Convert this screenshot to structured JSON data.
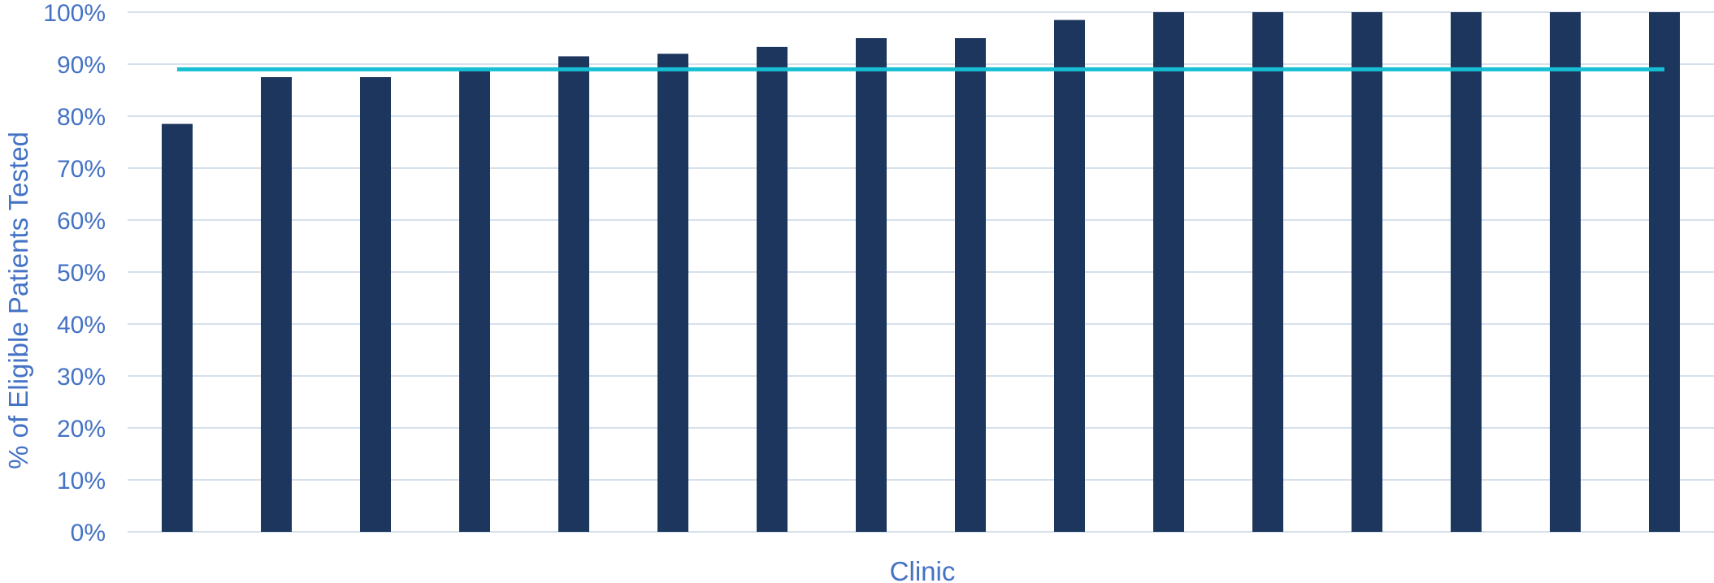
{
  "chart_data": {
    "type": "bar",
    "title": "",
    "xlabel": "Clinic",
    "ylabel": "% of Eligible Patients Tested",
    "ylim": [
      0,
      100
    ],
    "y_ticks": [
      "0%",
      "10%",
      "20%",
      "30%",
      "40%",
      "50%",
      "60%",
      "70%",
      "80%",
      "90%",
      "100%"
    ],
    "categories": [
      "",
      "",
      "",
      "",
      "",
      "",
      "",
      "",
      "",
      "",
      "",
      "",
      "",
      "",
      "",
      ""
    ],
    "values": [
      78.5,
      87.5,
      87.5,
      89,
      91.5,
      92,
      93.3,
      95,
      95,
      98.5,
      100,
      100,
      100,
      100,
      100,
      100
    ],
    "reference_line": 89,
    "grid": true,
    "legend": "none",
    "colors": {
      "bar": "#1c365e",
      "reference_line": "#17bfd4",
      "grid": "#d6e0eb",
      "text": "#4472c4"
    }
  }
}
